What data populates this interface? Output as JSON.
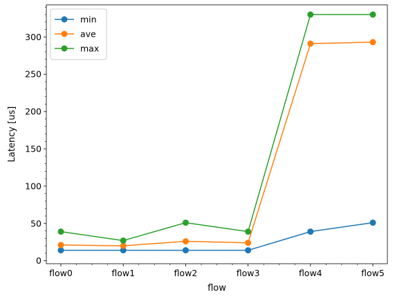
{
  "chart_data": {
    "type": "line",
    "title": "",
    "xlabel": "flow",
    "ylabel": "Latency [us]",
    "categories": [
      "flow0",
      "flow1",
      "flow2",
      "flow3",
      "flow4",
      "flow5"
    ],
    "ylim": [
      -4,
      343
    ],
    "yticks": [
      0,
      50,
      100,
      150,
      200,
      250,
      300
    ],
    "y_minor_step": 10,
    "grid": false,
    "legend_position": "top-left",
    "marker": "circle",
    "series": [
      {
        "name": "min",
        "color": "#1f77b4",
        "values": [
          14,
          14,
          14,
          14,
          39,
          51
        ]
      },
      {
        "name": "ave",
        "color": "#ff7f0e",
        "values": [
          21,
          20,
          26,
          24,
          291,
          293
        ]
      },
      {
        "name": "max",
        "color": "#2ca02c",
        "values": [
          39,
          27,
          51,
          39,
          330,
          330
        ]
      }
    ]
  }
}
